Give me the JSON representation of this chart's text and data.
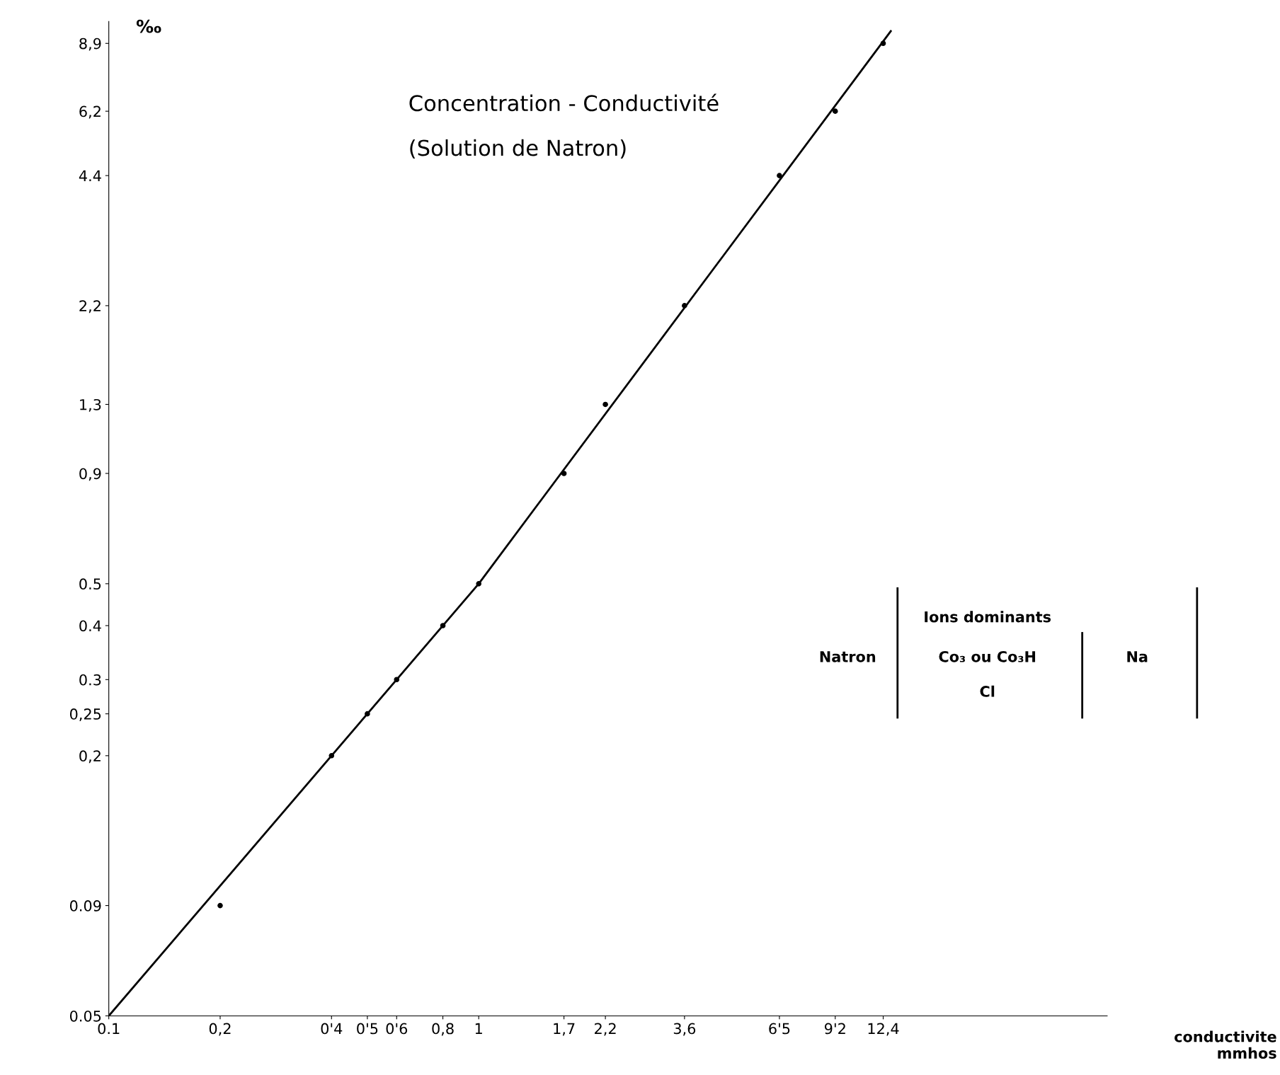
{
  "chart_data": {
    "type": "scatter",
    "title": "Concentration - Conductivité",
    "subtitle": "(Solution de Natron)",
    "xlabel": "conductivite\nmmhos",
    "ylabel": "‰",
    "log": "xy",
    "grid": false,
    "legend": false,
    "marker": "circle",
    "line_style": "solid",
    "xlim": [
      0.1,
      50
    ],
    "ylim": [
      0.05,
      10
    ],
    "xticks": [
      {
        "value": 0.1,
        "label": "0.1"
      },
      {
        "value": 0.2,
        "label": "0,2"
      },
      {
        "value": 0.4,
        "label": "0'4"
      },
      {
        "value": 0.5,
        "label": "0'5"
      },
      {
        "value": 0.6,
        "label": "0'6"
      },
      {
        "value": 0.8,
        "label": "0,8"
      },
      1,
      {
        "value": 1.7,
        "label": "1,7"
      },
      {
        "value": 2.2,
        "label": "2,2"
      },
      {
        "value": 3.6,
        "label": "3,6"
      },
      {
        "value": 6.5,
        "label": "6'5"
      },
      {
        "value": 9.2,
        "label": "9'2"
      },
      {
        "value": 12.4,
        "label": "12,4"
      }
    ],
    "yticks": [
      {
        "value": 0.05,
        "label": "0.05"
      },
      {
        "value": 0.09,
        "label": "0.09"
      },
      {
        "value": 0.2,
        "label": "0,2"
      },
      {
        "value": 0.25,
        "label": "0,25"
      },
      {
        "value": 0.3,
        "label": "0.3"
      },
      {
        "value": 0.4,
        "label": "0.4"
      },
      {
        "value": 0.5,
        "label": "0.5"
      },
      {
        "value": 0.9,
        "label": "0,9"
      },
      {
        "value": 1.3,
        "label": "1,3"
      },
      {
        "value": 2.2,
        "label": "2,2"
      },
      {
        "value": 4.4,
        "label": "4.4"
      },
      {
        "value": 6.2,
        "label": "6,2"
      },
      {
        "value": 8.9,
        "label": "8,9"
      }
    ],
    "series": [
      {
        "color": "#000000",
        "x": [
          0.2,
          0.4,
          0.5,
          0.6,
          0.8,
          1,
          1.7,
          2.2,
          3.6,
          6.5,
          9.2,
          12.4
        ],
        "values": [
          0.09,
          0.2,
          0.25,
          0.3,
          0.4,
          0.5,
          0.9,
          1.3,
          2.2,
          4.4,
          6.2,
          8.9
        ]
      },
      {
        "type": "line",
        "color": "#000000",
        "marker": "none",
        "x": [
          0.1,
          1,
          13
        ],
        "values": [
          0.05,
          0.5,
          9.5
        ]
      }
    ],
    "annotations": [
      "Natron",
      "Ions dominants",
      "Co₃ ou Co₃H",
      "Cl",
      "Na"
    ]
  }
}
